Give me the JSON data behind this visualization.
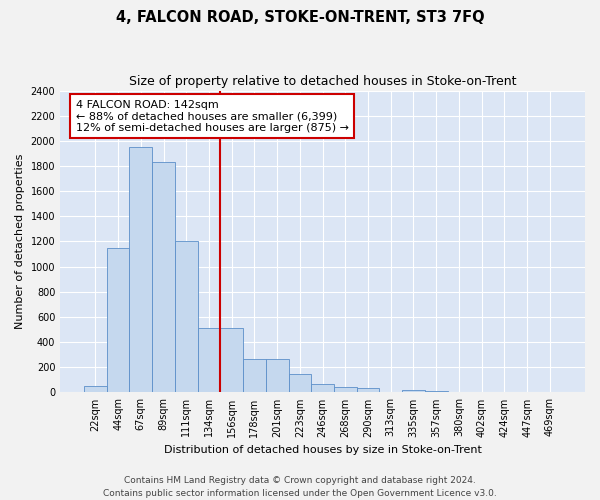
{
  "title": "4, FALCON ROAD, STOKE-ON-TRENT, ST3 7FQ",
  "subtitle": "Size of property relative to detached houses in Stoke-on-Trent",
  "xlabel": "Distribution of detached houses by size in Stoke-on-Trent",
  "ylabel": "Number of detached properties",
  "categories": [
    "22sqm",
    "44sqm",
    "67sqm",
    "89sqm",
    "111sqm",
    "134sqm",
    "156sqm",
    "178sqm",
    "201sqm",
    "223sqm",
    "246sqm",
    "268sqm",
    "290sqm",
    "313sqm",
    "335sqm",
    "357sqm",
    "380sqm",
    "402sqm",
    "424sqm",
    "447sqm",
    "469sqm"
  ],
  "values": [
    50,
    1150,
    1950,
    1830,
    1200,
    510,
    510,
    265,
    265,
    145,
    65,
    40,
    35,
    5,
    20,
    15,
    5,
    3,
    2,
    2,
    2
  ],
  "bar_color": "#c5d8ee",
  "bar_edge_color": "#5b8fc9",
  "ref_line_x": 5.5,
  "reference_line_color": "#cc0000",
  "annotation_text": "4 FALCON ROAD: 142sqm\n← 88% of detached houses are smaller (6,399)\n12% of semi-detached houses are larger (875) →",
  "annotation_box_color": "#cc0000",
  "ylim": [
    0,
    2400
  ],
  "yticks": [
    0,
    200,
    400,
    600,
    800,
    1000,
    1200,
    1400,
    1600,
    1800,
    2000,
    2200,
    2400
  ],
  "footer_line1": "Contains HM Land Registry data © Crown copyright and database right 2024.",
  "footer_line2": "Contains public sector information licensed under the Open Government Licence v3.0.",
  "background_color": "#dce6f5",
  "grid_color": "#ffffff",
  "fig_bg_color": "#f2f2f2",
  "title_fontsize": 10.5,
  "subtitle_fontsize": 9,
  "axis_label_fontsize": 8,
  "tick_fontsize": 7,
  "annotation_fontsize": 8,
  "footer_fontsize": 6.5
}
